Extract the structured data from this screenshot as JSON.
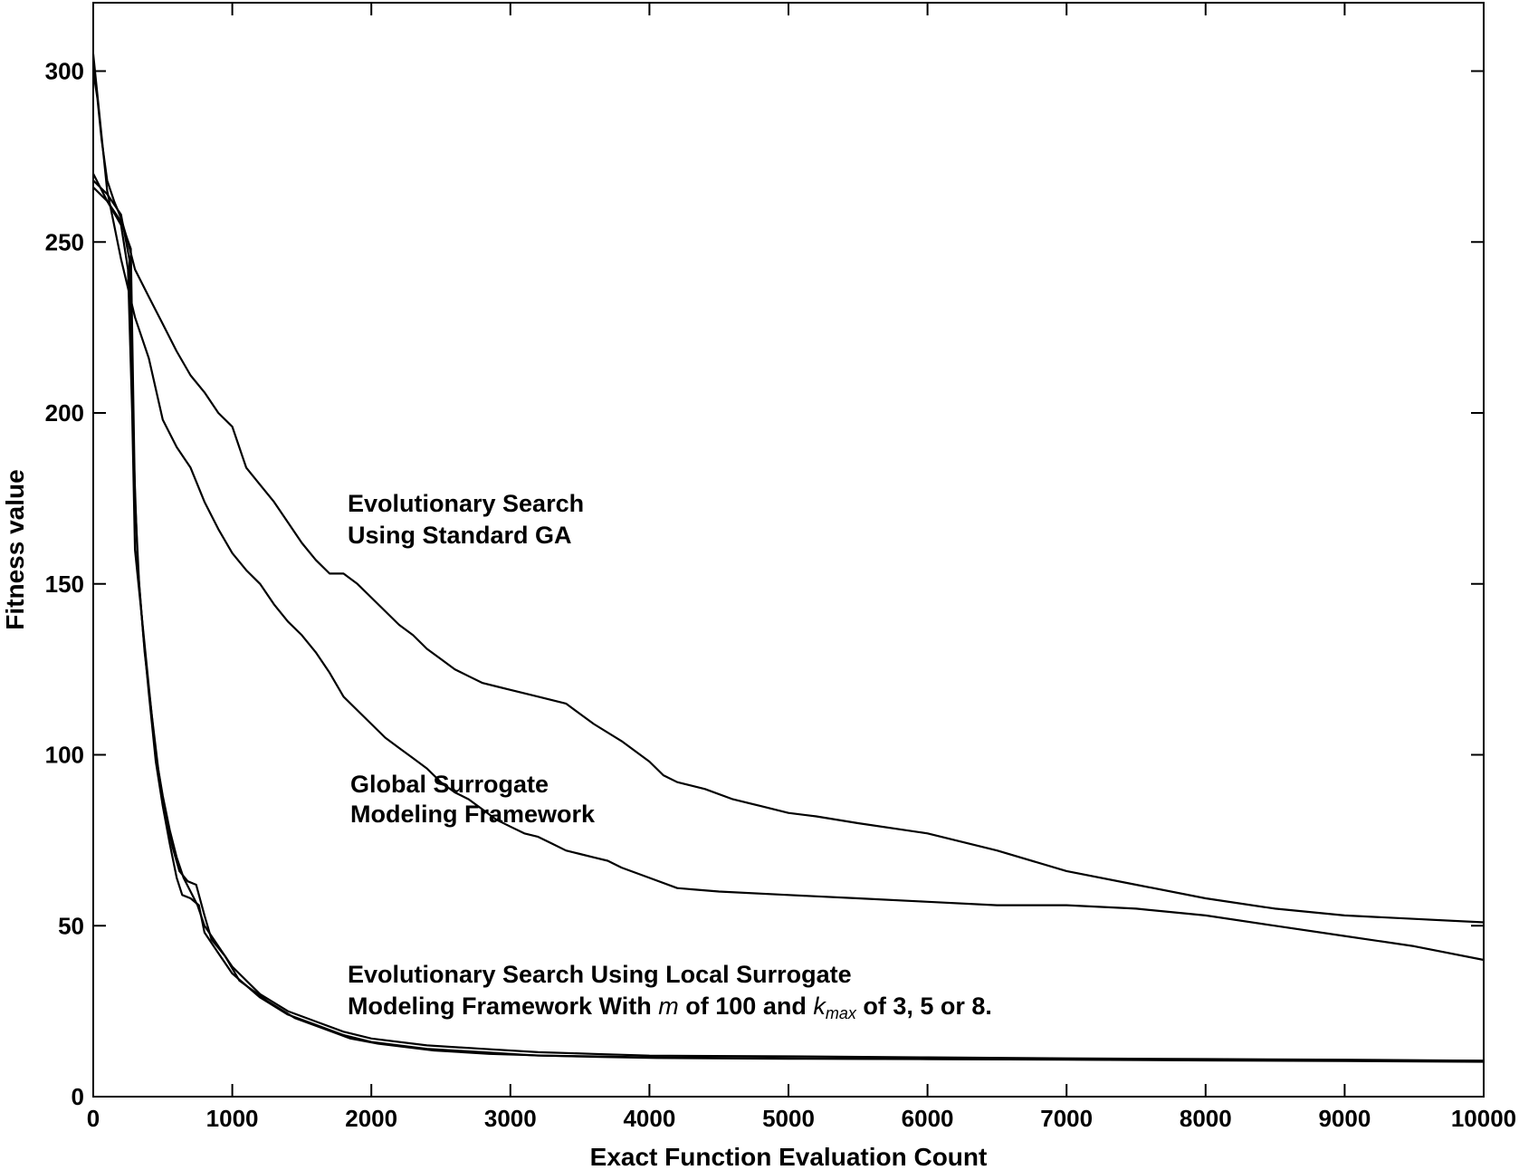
{
  "chart_data": {
    "type": "line",
    "title": "",
    "xlabel": "Exact Function Evaluation Count",
    "ylabel": "Fitness value",
    "xlim": [
      0,
      10000
    ],
    "ylim": [
      0,
      320
    ],
    "xticks": [
      0,
      1000,
      2000,
      3000,
      4000,
      5000,
      6000,
      7000,
      8000,
      9000,
      10000
    ],
    "yticks": [
      0,
      50,
      100,
      150,
      200,
      250,
      300
    ],
    "grid": false,
    "legend": "none",
    "annotations": [
      {
        "lines": [
          "Evolutionary Search",
          "Using Standard GA"
        ]
      },
      {
        "lines": [
          "Global Surrogate",
          "Modeling Framework"
        ]
      },
      {
        "line1": "Evolutionary Search Using Local  Surrogate",
        "line2_a": "Modeling Framework With ",
        "line2_m": "m",
        "line2_b": " of 100 and ",
        "line2_k": "k",
        "line2_sub": "max",
        "line2_c": " of 3, 5 or 8."
      }
    ],
    "series": [
      {
        "x": [
          0,
          30,
          60,
          100,
          150,
          200,
          250,
          300,
          400,
          500,
          600,
          700,
          800,
          900,
          1000,
          1100,
          1200,
          1300,
          1400,
          1500,
          1600,
          1700,
          1800,
          1900,
          2000,
          2100,
          2200,
          2300,
          2400,
          2500,
          2600,
          2700,
          2800,
          2900,
          3000,
          3200,
          3400,
          3500,
          3600,
          3800,
          4000,
          4100,
          4200,
          4400,
          4600,
          4800,
          5000,
          5200,
          5500,
          6000,
          6500,
          7000,
          7500,
          8000,
          8500,
          9000,
          9500,
          10000
        ],
        "y": [
          300,
          292,
          280,
          268,
          262,
          257,
          250,
          242,
          234,
          226,
          218,
          211,
          206,
          200,
          196,
          184,
          179,
          174,
          168,
          162,
          157,
          153,
          153,
          150,
          146,
          142,
          138,
          135,
          131,
          128,
          125,
          123,
          121,
          120,
          119,
          117,
          115,
          112,
          109,
          104,
          98,
          94,
          92,
          90,
          87,
          85,
          83,
          82,
          80,
          77,
          72,
          66,
          62,
          58,
          55,
          53,
          52,
          51
        ]
      },
      {
        "x": [
          0,
          50,
          100,
          200,
          300,
          400,
          500,
          600,
          700,
          800,
          900,
          1000,
          1100,
          1200,
          1300,
          1400,
          1500,
          1600,
          1700,
          1800,
          1900,
          2000,
          2100,
          2200,
          2300,
          2400,
          2500,
          2600,
          2700,
          2800,
          2900,
          3000,
          3100,
          3200,
          3300,
          3400,
          3500,
          3600,
          3700,
          3800,
          4000,
          4200,
          4500,
          5000,
          5500,
          6000,
          6500,
          7000,
          7500,
          8000,
          8500,
          9000,
          9500,
          10000
        ],
        "y": [
          305,
          285,
          265,
          245,
          228,
          216,
          198,
          190,
          184,
          174,
          166,
          159,
          154,
          150,
          144,
          139,
          135,
          130,
          124,
          117,
          113,
          109,
          105,
          102,
          99,
          96,
          92,
          89,
          87,
          84,
          81,
          79,
          77,
          76,
          74,
          72,
          71,
          70,
          69,
          67,
          64,
          61,
          60,
          59,
          58,
          57,
          56,
          56,
          55,
          53,
          50,
          47,
          44,
          40
        ]
      },
      {
        "x": [
          0,
          100,
          200,
          250,
          280,
          300,
          350,
          400,
          450,
          500,
          550,
          600,
          650,
          700,
          750,
          800,
          900,
          1000,
          1200,
          1400,
          1600,
          1800,
          2000,
          2400,
          2800,
          3200,
          3600,
          4000,
          5000,
          6000,
          7000,
          8000,
          9000,
          10000
        ],
        "y": [
          270,
          262,
          255,
          242,
          200,
          160,
          140,
          120,
          100,
          88,
          78,
          70,
          64,
          60,
          56,
          50,
          44,
          38,
          30,
          25,
          22,
          19,
          17,
          15,
          14,
          13,
          12.5,
          12,
          11.8,
          11.5,
          11.2,
          11,
          10.8,
          10.5
        ]
      },
      {
        "x": [
          0,
          100,
          200,
          260,
          290,
          320,
          360,
          400,
          450,
          500,
          550,
          600,
          640,
          700,
          760,
          800,
          900,
          1000,
          1200,
          1400,
          1600,
          1800,
          2000,
          2400,
          2800,
          3200,
          3600,
          4000,
          5000,
          6000,
          7000,
          8000,
          9000,
          10000
        ],
        "y": [
          268,
          264,
          258,
          245,
          190,
          155,
          135,
          118,
          98,
          85,
          74,
          64,
          59,
          58,
          56,
          48,
          42,
          36,
          29,
          24,
          21,
          18,
          16,
          14,
          13,
          12,
          11.8,
          11.5,
          11.2,
          11,
          10.8,
          10.6,
          10.4,
          10.2
        ]
      },
      {
        "x": [
          0,
          100,
          200,
          270,
          300,
          330,
          370,
          420,
          470,
          520,
          570,
          620,
          680,
          740,
          800,
          850,
          950,
          1050,
          1250,
          1450,
          1650,
          1850,
          2050,
          2450,
          2850,
          3250,
          3650,
          4050,
          5000,
          6000,
          7000,
          8000,
          9000,
          10000
        ],
        "y": [
          266,
          262,
          256,
          248,
          175,
          150,
          130,
          112,
          95,
          82,
          73,
          66,
          63,
          62,
          53,
          46,
          41,
          34,
          28,
          23,
          20,
          17,
          15.5,
          13.5,
          12.5,
          12,
          11.6,
          11.3,
          11.1,
          11,
          10.9,
          10.7,
          10.6,
          10.5
        ]
      }
    ]
  }
}
